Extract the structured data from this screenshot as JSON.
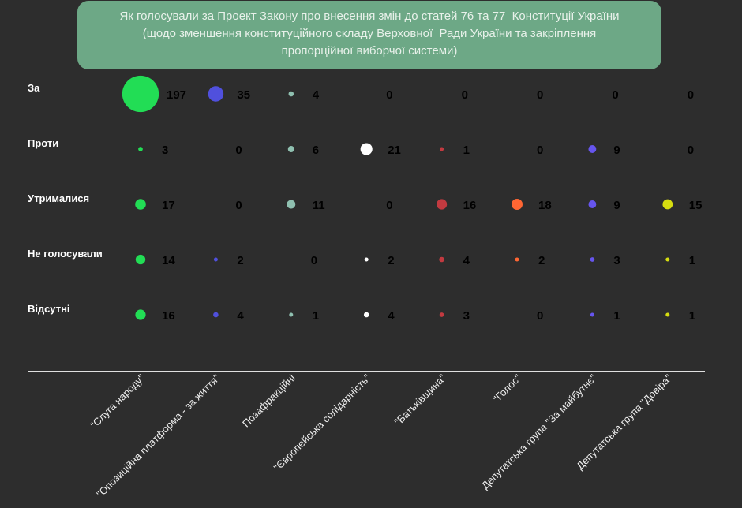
{
  "chart_data": {
    "type": "scatter",
    "subtype": "bubble-matrix",
    "title": [
      "Як голосували за Проект Закону про внесення змін до статей 76 та 77  Конституції України",
      "(щодо зменшення конституційного складу Верховної  Ради України та закріплення",
      "пропорційної виборчої системи)"
    ],
    "rows": [
      "За",
      "Проти",
      "Утрималися",
      "Не голосували",
      "Відсутні"
    ],
    "categories": [
      "\"Слуга народу\"",
      "\"Опозиційна платформа - за життя\"",
      "Позафракційні",
      "\"Європейська солідарність\"",
      "\"Батьківщина\"",
      "\"Голос\"",
      "Депутатська група \"За майбутнє\"",
      "Депутатська група \"Довіра\""
    ],
    "colors": [
      "#22dd55",
      "#5050dd",
      "#8fc0b0",
      "#ffffff",
      "#c23a40",
      "#ff6633",
      "#6655ee",
      "#d6dd10"
    ],
    "series": [
      {
        "name": "За",
        "values": [
          197,
          35,
          4,
          0,
          0,
          0,
          0,
          0
        ]
      },
      {
        "name": "Проти",
        "values": [
          3,
          0,
          6,
          21,
          1,
          0,
          9,
          0
        ]
      },
      {
        "name": "Утрималися",
        "values": [
          17,
          0,
          11,
          0,
          16,
          18,
          9,
          15
        ]
      },
      {
        "name": "Не голосували",
        "values": [
          14,
          2,
          0,
          2,
          4,
          2,
          3,
          1
        ]
      },
      {
        "name": "Відсутні",
        "values": [
          16,
          4,
          1,
          4,
          3,
          0,
          1,
          1
        ]
      }
    ],
    "background": "#2d2d2d",
    "title_background": "#6da886"
  }
}
